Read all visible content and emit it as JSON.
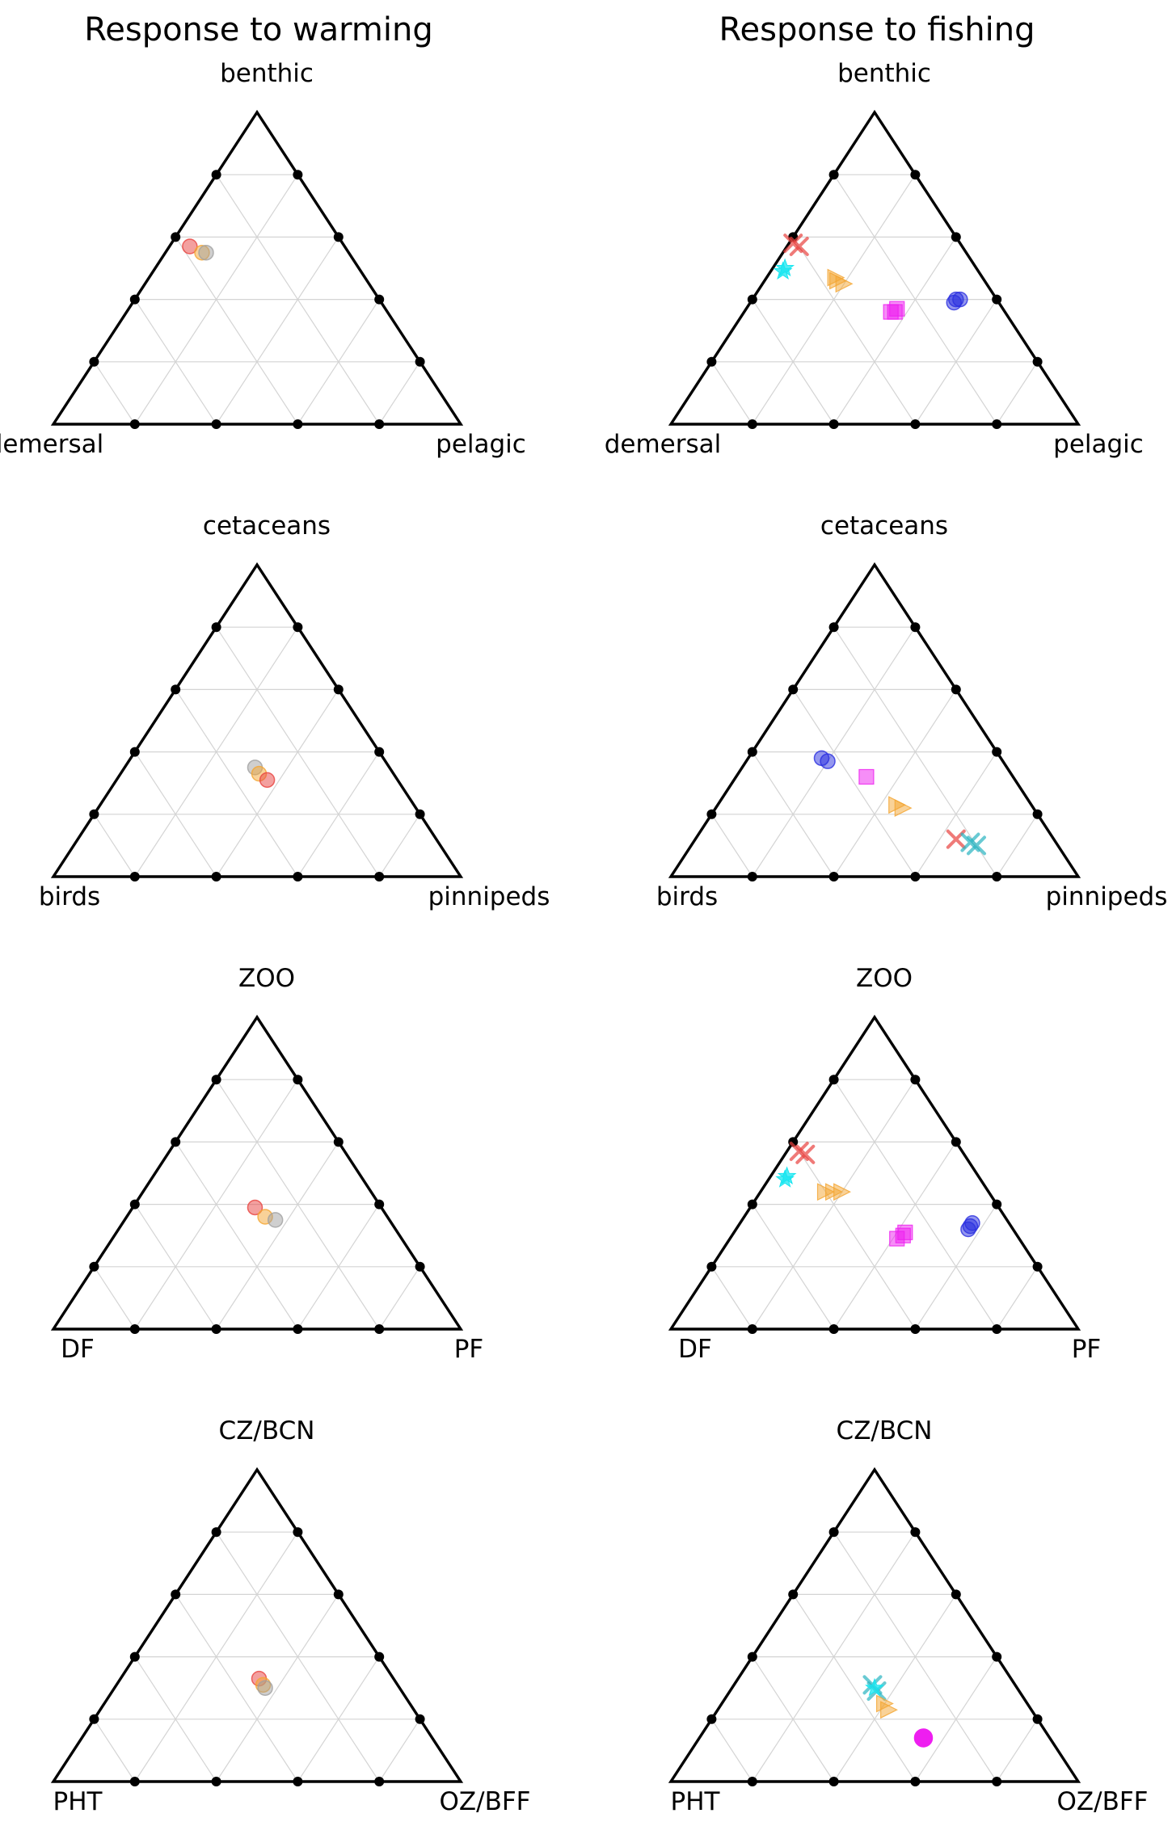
{
  "column_titles": [
    "Response to warming",
    "Response to fishing"
  ],
  "colors": {
    "red": "#e8423f",
    "orange": "#f4a531",
    "gray": "#a0a0a0",
    "cyan": "#17e6f0",
    "blue": "#2a30e0",
    "magenta": "#ee1ef0",
    "teal": "#2ab3c0"
  },
  "chart_data": [
    {
      "type": "scatter",
      "subtype": "ternary",
      "column": "Response to warming",
      "corners": {
        "top": "benthic",
        "left": "demersal",
        "right": "pelagic"
      },
      "grid": true,
      "points": [
        {
          "a": 0.57,
          "b": 0.38,
          "marker": "circle",
          "color": "red"
        },
        {
          "a": 0.55,
          "b": 0.36,
          "marker": "circle",
          "color": "orange"
        },
        {
          "a": 0.55,
          "b": 0.35,
          "marker": "circle",
          "color": "gray"
        }
      ]
    },
    {
      "type": "scatter",
      "subtype": "ternary",
      "column": "Response to fishing",
      "corners": {
        "top": "benthic",
        "left": "demersal",
        "right": "pelagic"
      },
      "grid": true,
      "points": [
        {
          "a": 0.57,
          "b": 0.4,
          "marker": "x",
          "color": "red"
        },
        {
          "a": 0.58,
          "b": 0.41,
          "marker": "x",
          "color": "red"
        },
        {
          "a": 0.5,
          "b": 0.47,
          "marker": "star",
          "color": "cyan"
        },
        {
          "a": 0.49,
          "b": 0.48,
          "marker": "star",
          "color": "cyan"
        },
        {
          "a": 0.47,
          "b": 0.36,
          "marker": "triangle-right",
          "color": "orange"
        },
        {
          "a": 0.46,
          "b": 0.36,
          "marker": "triangle-right",
          "color": "orange"
        },
        {
          "a": 0.45,
          "b": 0.35,
          "marker": "triangle-right",
          "color": "orange"
        },
        {
          "a": 0.36,
          "b": 0.28,
          "marker": "square",
          "color": "magenta"
        },
        {
          "a": 0.36,
          "b": 0.27,
          "marker": "square",
          "color": "magenta"
        },
        {
          "a": 0.37,
          "b": 0.26,
          "marker": "square",
          "color": "magenta"
        },
        {
          "a": 0.39,
          "b": 0.11,
          "marker": "circle",
          "color": "blue"
        },
        {
          "a": 0.4,
          "b": 0.1,
          "marker": "circle",
          "color": "blue"
        },
        {
          "a": 0.4,
          "b": 0.09,
          "marker": "circle",
          "color": "blue"
        }
      ]
    },
    {
      "type": "scatter",
      "subtype": "ternary",
      "column": "Response to warming",
      "corners": {
        "top": "cetaceans",
        "left": "birds",
        "right": "pinnipeds"
      },
      "grid": true,
      "points": [
        {
          "a": 0.35,
          "b": 0.33,
          "marker": "circle",
          "color": "gray"
        },
        {
          "a": 0.33,
          "b": 0.33,
          "marker": "circle",
          "color": "orange"
        },
        {
          "a": 0.31,
          "b": 0.32,
          "marker": "circle",
          "color": "red"
        }
      ]
    },
    {
      "type": "scatter",
      "subtype": "ternary",
      "column": "Response to fishing",
      "corners": {
        "top": "cetaceans",
        "left": "birds",
        "right": "pinnipeds"
      },
      "grid": true,
      "points": [
        {
          "a": 0.38,
          "b": 0.44,
          "marker": "circle",
          "color": "blue"
        },
        {
          "a": 0.37,
          "b": 0.43,
          "marker": "circle",
          "color": "blue"
        },
        {
          "a": 0.32,
          "b": 0.36,
          "marker": "square",
          "color": "magenta"
        },
        {
          "a": 0.23,
          "b": 0.33,
          "marker": "triangle-right",
          "color": "orange"
        },
        {
          "a": 0.22,
          "b": 0.32,
          "marker": "triangle-right",
          "color": "orange"
        },
        {
          "a": 0.12,
          "b": 0.24,
          "marker": "x",
          "color": "red"
        },
        {
          "a": 0.11,
          "b": 0.21,
          "marker": "x",
          "color": "teal"
        },
        {
          "a": 0.1,
          "b": 0.2,
          "marker": "x",
          "color": "teal"
        }
      ]
    },
    {
      "type": "scatter",
      "subtype": "ternary",
      "column": "Response to warming",
      "corners": {
        "top": "ZOO",
        "left": "DF",
        "right": "PF"
      },
      "grid": true,
      "points": [
        {
          "a": 0.39,
          "b": 0.31,
          "marker": "circle",
          "color": "red"
        },
        {
          "a": 0.36,
          "b": 0.3,
          "marker": "circle",
          "color": "orange"
        },
        {
          "a": 0.35,
          "b": 0.28,
          "marker": "circle",
          "color": "gray"
        }
      ]
    },
    {
      "type": "scatter",
      "subtype": "ternary",
      "column": "Response to fishing",
      "corners": {
        "top": "ZOO",
        "left": "DF",
        "right": "PF"
      },
      "grid": true,
      "points": [
        {
          "a": 0.57,
          "b": 0.4,
          "marker": "x",
          "color": "red"
        },
        {
          "a": 0.56,
          "b": 0.39,
          "marker": "x",
          "color": "red"
        },
        {
          "a": 0.49,
          "b": 0.47,
          "marker": "star",
          "color": "cyan"
        },
        {
          "a": 0.48,
          "b": 0.48,
          "marker": "star",
          "color": "cyan"
        },
        {
          "a": 0.44,
          "b": 0.4,
          "marker": "triangle-right",
          "color": "orange"
        },
        {
          "a": 0.44,
          "b": 0.38,
          "marker": "triangle-right",
          "color": "orange"
        },
        {
          "a": 0.44,
          "b": 0.36,
          "marker": "triangle-right",
          "color": "orange"
        },
        {
          "a": 0.29,
          "b": 0.3,
          "marker": "square",
          "color": "magenta"
        },
        {
          "a": 0.3,
          "b": 0.28,
          "marker": "square",
          "color": "magenta"
        },
        {
          "a": 0.31,
          "b": 0.27,
          "marker": "square",
          "color": "magenta"
        },
        {
          "a": 0.32,
          "b": 0.11,
          "marker": "circle",
          "color": "blue"
        },
        {
          "a": 0.33,
          "b": 0.1,
          "marker": "circle",
          "color": "blue"
        },
        {
          "a": 0.34,
          "b": 0.09,
          "marker": "circle",
          "color": "blue"
        }
      ]
    },
    {
      "type": "scatter",
      "subtype": "ternary",
      "column": "Response to warming",
      "corners": {
        "top": "CZ/BCN",
        "left": "PHT",
        "right": "OZ/BFF"
      },
      "grid": true,
      "points": [
        {
          "a": 0.33,
          "b": 0.33,
          "marker": "circle",
          "color": "red"
        },
        {
          "a": 0.31,
          "b": 0.33,
          "marker": "circle",
          "color": "orange"
        },
        {
          "a": 0.3,
          "b": 0.33,
          "marker": "circle",
          "color": "gray"
        }
      ]
    },
    {
      "type": "scatter",
      "subtype": "ternary",
      "column": "Response to fishing",
      "corners": {
        "top": "CZ/BCN",
        "left": "PHT",
        "right": "OZ/BFF"
      },
      "grid": true,
      "points": [
        {
          "a": 0.31,
          "b": 0.35,
          "marker": "x",
          "color": "teal"
        },
        {
          "a": 0.29,
          "b": 0.35,
          "marker": "x",
          "color": "teal"
        },
        {
          "a": 0.3,
          "b": 0.35,
          "marker": "star",
          "color": "cyan"
        },
        {
          "a": 0.25,
          "b": 0.35,
          "marker": "triangle-right",
          "color": "orange"
        },
        {
          "a": 0.23,
          "b": 0.35,
          "marker": "triangle-right",
          "color": "orange"
        },
        {
          "a": 0.14,
          "b": 0.31,
          "marker": "circle",
          "color": "magenta",
          "opaque": true
        }
      ]
    }
  ]
}
